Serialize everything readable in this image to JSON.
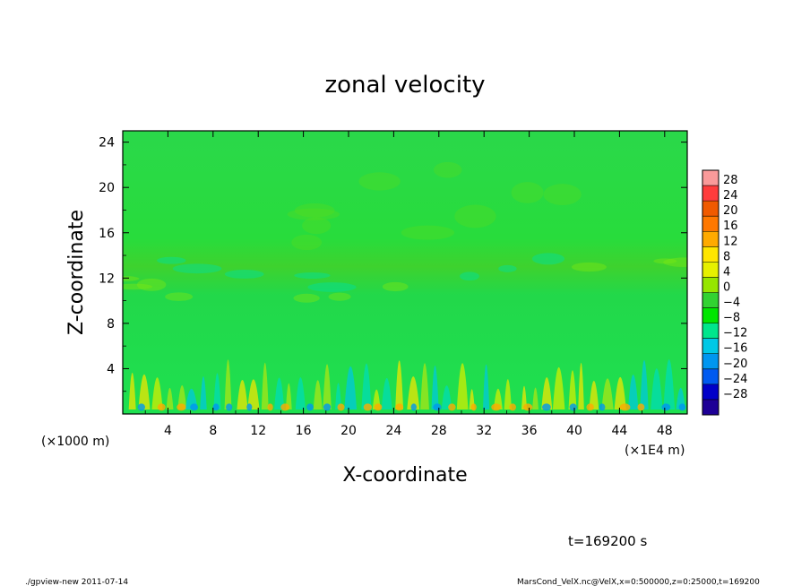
{
  "chart_data": {
    "type": "heatmap",
    "title": "zonal velocity",
    "xlabel": "X-coordinate",
    "ylabel": "Z-coordinate",
    "x_unit": "(×1E4 m)",
    "y_unit": "(×1000 m)",
    "x_ticks": [
      "4",
      "8",
      "12",
      "16",
      "20",
      "24",
      "28",
      "32",
      "36",
      "40",
      "44",
      "48"
    ],
    "y_ticks": [
      "4",
      "8",
      "12",
      "16",
      "20",
      "24"
    ],
    "xlim": [
      0,
      50
    ],
    "ylim": [
      0,
      25
    ],
    "colorbar": {
      "labels": [
        "28",
        "24",
        "20",
        "16",
        "12",
        "8",
        "4",
        "0",
        "−4",
        "−8",
        "−12",
        "−16",
        "−20",
        "−24",
        "−28"
      ],
      "colors": [
        "#fa9a9a",
        "#ff3c3c",
        "#f05a00",
        "#ff7800",
        "#ffaa00",
        "#ffe600",
        "#e6f000",
        "#96e600",
        "#32d232",
        "#00e600",
        "#00e68c",
        "#00c8e6",
        "#0096f0",
        "#005af0",
        "#0000c8",
        "#1e0096"
      ]
    },
    "annotations": {
      "time": "t=169200 s"
    }
  },
  "footer": {
    "left": "./gpview-new  2011-07-14",
    "right": "MarsCond_VelX.nc@VelX,x=0:500000,z=0:25000,t=169200"
  }
}
